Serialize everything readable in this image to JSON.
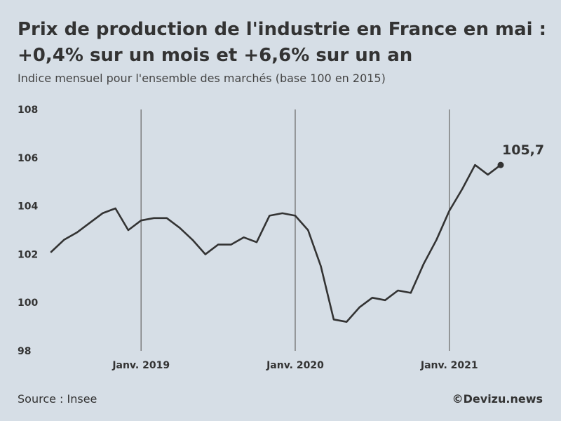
{
  "title_line1": "Prix de production de l'industrie en France en mai :",
  "title_line2": "+0,4% sur un mois et +6,6% sur un an",
  "subtitle": "Indice mensuel pour l'ensemble des marchés (base 100 en 2015)",
  "source": "Source : Insee",
  "credit": "©Devizu.news",
  "colors": {
    "background": "#d6dee6",
    "line": "#333333",
    "year_rule": "#777777"
  },
  "chart_data": {
    "type": "line",
    "title": "Prix de production de l'industrie en France en mai : +0,4% sur un mois et +6,6% sur un an",
    "subtitle": "Indice mensuel pour l'ensemble des marchés (base 100 en 2015)",
    "ylim": [
      98,
      108
    ],
    "y_ticks": [
      "98",
      "100",
      "102",
      "104",
      "106",
      "108"
    ],
    "x_ticks": [
      "Janv. 2019",
      "Janv. 2020",
      "Janv. 2021"
    ],
    "x": [
      "2018-06",
      "2018-07",
      "2018-08",
      "2018-09",
      "2018-10",
      "2018-11",
      "2018-12",
      "2019-01",
      "2019-02",
      "2019-03",
      "2019-04",
      "2019-05",
      "2019-06",
      "2019-07",
      "2019-08",
      "2019-09",
      "2019-10",
      "2019-11",
      "2019-12",
      "2020-01",
      "2020-02",
      "2020-03",
      "2020-04",
      "2020-05",
      "2020-06",
      "2020-07",
      "2020-08",
      "2020-09",
      "2020-10",
      "2020-11",
      "2020-12",
      "2021-01",
      "2021-02",
      "2021-03",
      "2021-04",
      "2021-05"
    ],
    "values": [
      102.1,
      102.6,
      102.9,
      103.3,
      103.7,
      103.9,
      103.0,
      103.4,
      103.5,
      103.5,
      103.1,
      102.6,
      102.0,
      102.4,
      102.4,
      102.7,
      102.5,
      103.6,
      103.7,
      103.6,
      103.0,
      101.5,
      99.3,
      99.2,
      99.8,
      100.2,
      100.1,
      100.5,
      100.4,
      101.6,
      102.6,
      103.8,
      104.7,
      105.7,
      105.3,
      105.7
    ],
    "last_value_label": "105,7",
    "grid": false,
    "legend": "none"
  }
}
